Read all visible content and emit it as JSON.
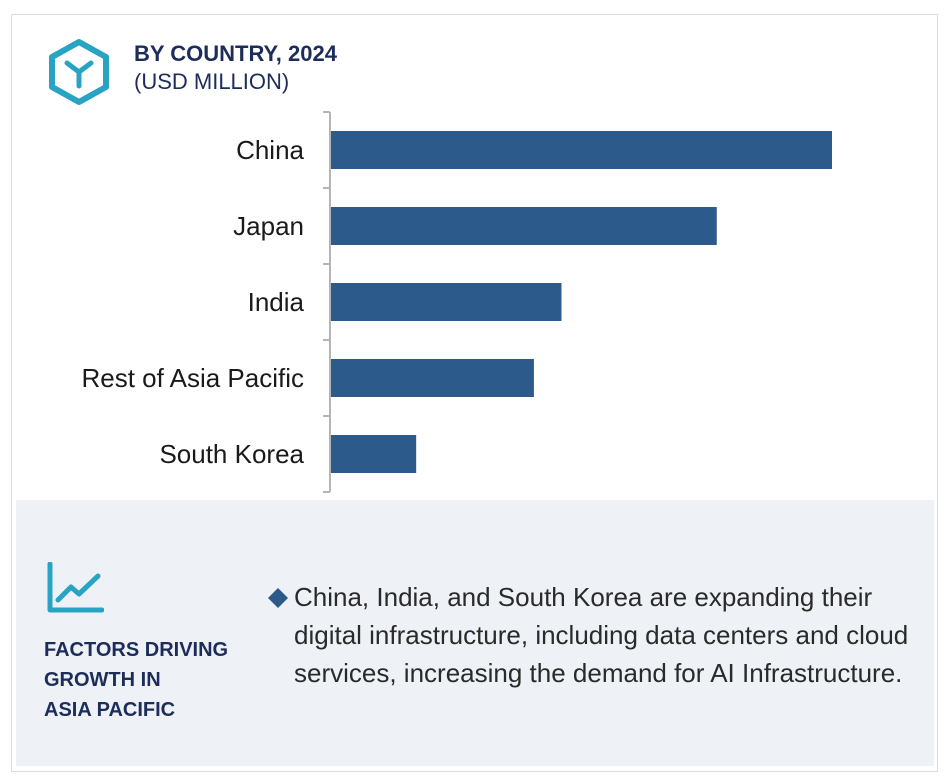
{
  "header": {
    "title": "BY COUNTRY, 2024",
    "subtitle": "(USD MILLION)",
    "icon": "hexagon-y-icon"
  },
  "colors": {
    "bar": "#2c5a8a",
    "accent": "#29a3c4",
    "title": "#1d2d5a",
    "panel_bg": "#eef1f6"
  },
  "chart_data": {
    "type": "bar",
    "orientation": "horizontal",
    "categories": [
      "China",
      "Japan",
      "India",
      "Rest of Asia Pacific",
      "South Korea"
    ],
    "values": [
      100,
      77,
      46,
      40.5,
      17
    ],
    "xlim": [
      0,
      100
    ],
    "title": "BY COUNTRY, 2024",
    "subtitle": "(USD MILLION)",
    "xlabel": "",
    "ylabel": "",
    "grid": false,
    "legend": "none"
  },
  "factors": {
    "icon": "trend-chart-icon",
    "title_lines": [
      "FACTORS DRIVING",
      "GROWTH IN",
      "ASIA PACIFIC"
    ],
    "bullet_icon": "diamond-icon",
    "bullet": "China, India, and South Korea are expanding their digital infrastructure, including data centers and cloud services, increasing the demand for AI Infrastructure."
  }
}
